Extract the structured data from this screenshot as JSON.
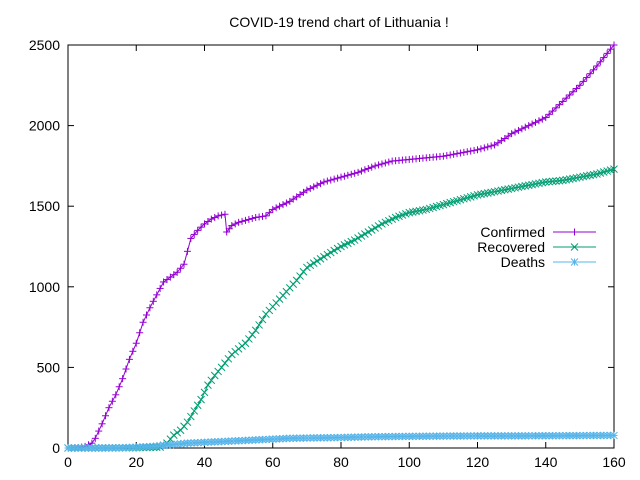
{
  "chart_data": {
    "type": "line",
    "title": "COVID-19 trend chart of Lithuania !",
    "xlabel": "",
    "ylabel": "",
    "xlim": [
      0,
      160
    ],
    "ylim": [
      0,
      2500
    ],
    "xticks": [
      0,
      20,
      40,
      60,
      80,
      100,
      120,
      140,
      160
    ],
    "yticks": [
      0,
      500,
      1000,
      1500,
      2000,
      2500
    ],
    "grid": false,
    "legend_position": "right",
    "series": [
      {
        "name": "Confirmed",
        "color": "#9400d3",
        "marker": "plus",
        "points": [
          [
            0,
            0
          ],
          [
            3,
            2
          ],
          [
            5,
            10
          ],
          [
            7,
            30
          ],
          [
            8,
            60
          ],
          [
            10,
            150
          ],
          [
            12,
            250
          ],
          [
            14,
            330
          ],
          [
            16,
            430
          ],
          [
            18,
            550
          ],
          [
            20,
            650
          ],
          [
            22,
            780
          ],
          [
            24,
            870
          ],
          [
            26,
            950
          ],
          [
            28,
            1030
          ],
          [
            30,
            1060
          ],
          [
            32,
            1090
          ],
          [
            34,
            1140
          ],
          [
            36,
            1300
          ],
          [
            38,
            1350
          ],
          [
            40,
            1390
          ],
          [
            42,
            1420
          ],
          [
            44,
            1440
          ],
          [
            46,
            1450
          ],
          [
            46.5,
            1340
          ],
          [
            48,
            1380
          ],
          [
            50,
            1400
          ],
          [
            55,
            1430
          ],
          [
            58,
            1440
          ],
          [
            60,
            1480
          ],
          [
            65,
            1530
          ],
          [
            70,
            1600
          ],
          [
            75,
            1650
          ],
          [
            80,
            1680
          ],
          [
            85,
            1710
          ],
          [
            90,
            1750
          ],
          [
            95,
            1780
          ],
          [
            100,
            1790
          ],
          [
            105,
            1800
          ],
          [
            110,
            1810
          ],
          [
            115,
            1830
          ],
          [
            120,
            1850
          ],
          [
            125,
            1880
          ],
          [
            128,
            1920
          ],
          [
            130,
            1950
          ],
          [
            135,
            2000
          ],
          [
            140,
            2050
          ],
          [
            145,
            2150
          ],
          [
            150,
            2250
          ],
          [
            155,
            2370
          ],
          [
            160,
            2500
          ]
        ]
      },
      {
        "name": "Recovered",
        "color": "#009e73",
        "marker": "cross",
        "points": [
          [
            0,
            0
          ],
          [
            10,
            0
          ],
          [
            20,
            2
          ],
          [
            27,
            5
          ],
          [
            29,
            30
          ],
          [
            31,
            80
          ],
          [
            33,
            110
          ],
          [
            35,
            160
          ],
          [
            37,
            230
          ],
          [
            39,
            300
          ],
          [
            41,
            390
          ],
          [
            43,
            450
          ],
          [
            45,
            500
          ],
          [
            48,
            580
          ],
          [
            52,
            650
          ],
          [
            55,
            730
          ],
          [
            58,
            830
          ],
          [
            61,
            900
          ],
          [
            64,
            970
          ],
          [
            67,
            1040
          ],
          [
            70,
            1120
          ],
          [
            73,
            1160
          ],
          [
            76,
            1200
          ],
          [
            80,
            1250
          ],
          [
            84,
            1290
          ],
          [
            88,
            1340
          ],
          [
            92,
            1390
          ],
          [
            96,
            1430
          ],
          [
            100,
            1460
          ],
          [
            105,
            1480
          ],
          [
            110,
            1510
          ],
          [
            115,
            1540
          ],
          [
            120,
            1570
          ],
          [
            125,
            1590
          ],
          [
            130,
            1610
          ],
          [
            135,
            1630
          ],
          [
            140,
            1650
          ],
          [
            145,
            1660
          ],
          [
            150,
            1680
          ],
          [
            155,
            1700
          ],
          [
            160,
            1730
          ]
        ]
      },
      {
        "name": "Deaths",
        "color": "#56b4e9",
        "marker": "star",
        "points": [
          [
            0,
            0
          ],
          [
            15,
            1
          ],
          [
            20,
            5
          ],
          [
            25,
            10
          ],
          [
            30,
            20
          ],
          [
            35,
            30
          ],
          [
            40,
            35
          ],
          [
            45,
            40
          ],
          [
            50,
            45
          ],
          [
            55,
            50
          ],
          [
            60,
            55
          ],
          [
            65,
            60
          ],
          [
            70,
            62
          ],
          [
            80,
            65
          ],
          [
            90,
            70
          ],
          [
            100,
            72
          ],
          [
            110,
            74
          ],
          [
            120,
            75
          ],
          [
            130,
            75
          ],
          [
            140,
            76
          ],
          [
            150,
            77
          ],
          [
            160,
            78
          ]
        ]
      }
    ]
  }
}
